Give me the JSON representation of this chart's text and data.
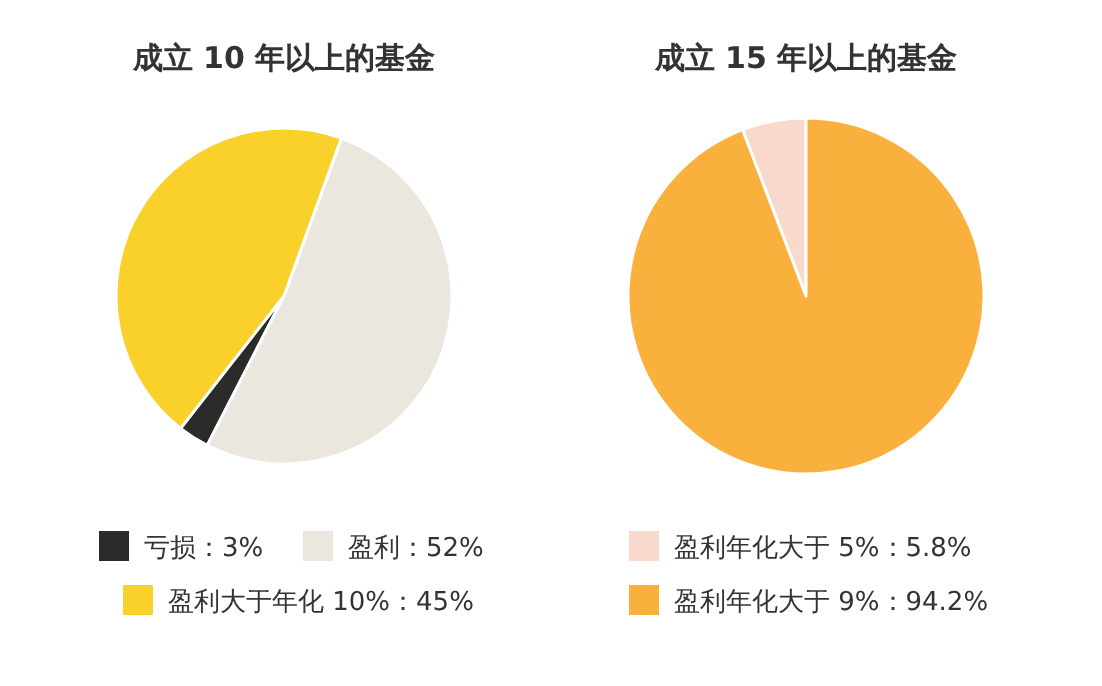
{
  "chart_data": [
    {
      "type": "pie",
      "title": "成立 10 年以上的基金",
      "categories": [
        "亏损：3%",
        "盈利：52%",
        "盈利大于年化 10%：45%"
      ],
      "values": [
        3,
        52,
        45
      ],
      "colors": [
        "#2b2b2b",
        "#ebe7de",
        "#f9d12a"
      ],
      "legend": "bottom"
    },
    {
      "type": "pie",
      "title": "成立 15 年以上的基金",
      "categories": [
        "盈利年化大于 5%：5.8%",
        "盈利年化大于 9%：94.2%"
      ],
      "values": [
        5.8,
        94.2
      ],
      "colors": [
        "#f8d9cc",
        "#f9b03c"
      ],
      "legend": "bottom"
    }
  ]
}
